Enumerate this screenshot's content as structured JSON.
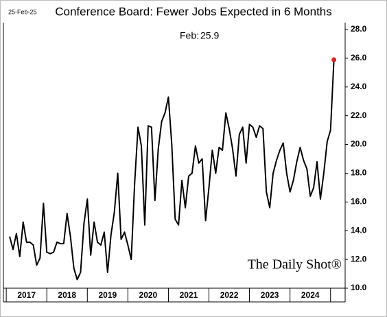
{
  "chart_data": {
    "type": "line",
    "title": "Conference Board: Fewer Jobs Expected in 6 Months",
    "date_stamp": "25-Feb-25",
    "annotation": {
      "label": "Feb:",
      "value": 25.9
    },
    "watermark": "The Daily Shot®",
    "series": [
      {
        "color": "#000000",
        "last_point_color": "#d62728",
        "x": [
          2017.083,
          2017.167,
          2017.25,
          2017.333,
          2017.417,
          2017.5,
          2017.583,
          2017.667,
          2017.75,
          2017.833,
          2017.917,
          2018,
          2018.083,
          2018.167,
          2018.25,
          2018.333,
          2018.417,
          2018.5,
          2018.583,
          2018.667,
          2018.75,
          2018.833,
          2018.917,
          2019,
          2019.083,
          2019.167,
          2019.25,
          2019.333,
          2019.417,
          2019.5,
          2019.583,
          2019.667,
          2019.75,
          2019.833,
          2019.917,
          2020,
          2020.083,
          2020.167,
          2020.25,
          2020.333,
          2020.417,
          2020.5,
          2020.583,
          2020.667,
          2020.75,
          2020.833,
          2020.917,
          2021,
          2021.083,
          2021.167,
          2021.25,
          2021.333,
          2021.417,
          2021.5,
          2021.583,
          2021.667,
          2021.75,
          2021.833,
          2021.917,
          2022,
          2022.083,
          2022.167,
          2022.25,
          2022.333,
          2022.417,
          2022.5,
          2022.583,
          2022.667,
          2022.75,
          2022.833,
          2022.917,
          2023,
          2023.083,
          2023.167,
          2023.25,
          2023.333,
          2023.417,
          2023.5,
          2023.583,
          2023.667,
          2023.75,
          2023.833,
          2023.917,
          2024,
          2024.083,
          2024.167,
          2024.25,
          2024.333,
          2024.417,
          2024.5,
          2024.583,
          2024.667,
          2024.75,
          2024.833,
          2024.917,
          2025,
          2025.083
        ],
        "values": [
          13.6,
          12.7,
          13.8,
          12.2,
          14.6,
          13.2,
          13.2,
          13.0,
          11.6,
          12.1,
          15.9,
          12.5,
          12.4,
          12.5,
          13.2,
          13.1,
          13.1,
          15.2,
          13.6,
          11.4,
          10.6,
          11.1,
          14.5,
          16.2,
          12.3,
          14.6,
          13.2,
          13.0,
          13.9,
          11.1,
          13.7,
          15.3,
          18.0,
          13.4,
          13.9,
          13.0,
          12.0,
          17.3,
          21.2,
          19.9,
          14.4,
          21.3,
          21.2,
          16.1,
          19.7,
          21.6,
          22.2,
          23.3,
          20.0,
          14.8,
          14.4,
          17.5,
          15.6,
          17.8,
          18.0,
          19.9,
          18.7,
          19.0,
          14.7,
          17.0,
          19.6,
          18.0,
          19.8,
          19.6,
          22.2,
          21.1,
          19.7,
          17.8,
          20.7,
          21.2,
          18.7,
          21.4,
          21.2,
          20.5,
          21.3,
          21.1,
          16.7,
          15.6,
          18.0,
          18.9,
          19.6,
          20.1,
          18.0,
          16.7,
          17.5,
          18.8,
          19.8,
          18.9,
          18.3,
          16.4,
          17.0,
          18.8,
          16.2,
          18.0,
          20.2,
          21.0,
          25.9
        ]
      }
    ],
    "xlim": [
      2016.93,
      2025.36
    ],
    "xticks": [
      2017,
      2018,
      2019,
      2020,
      2021,
      2022,
      2023,
      2024
    ],
    "ylim": [
      10,
      28
    ],
    "yticks": [
      {
        "value": 10,
        "label": "10.0"
      },
      {
        "value": 12,
        "label": "12.0"
      },
      {
        "value": 14,
        "label": "14.0"
      },
      {
        "value": 16,
        "label": "16.0"
      },
      {
        "value": 18,
        "label": "18.0"
      },
      {
        "value": 20,
        "label": "20.0"
      },
      {
        "value": 22,
        "label": "22.0"
      },
      {
        "value": 24,
        "label": "24.0"
      },
      {
        "value": 26,
        "label": "26.0"
      },
      {
        "value": 28,
        "label": "28.0"
      }
    ],
    "grid": false
  }
}
